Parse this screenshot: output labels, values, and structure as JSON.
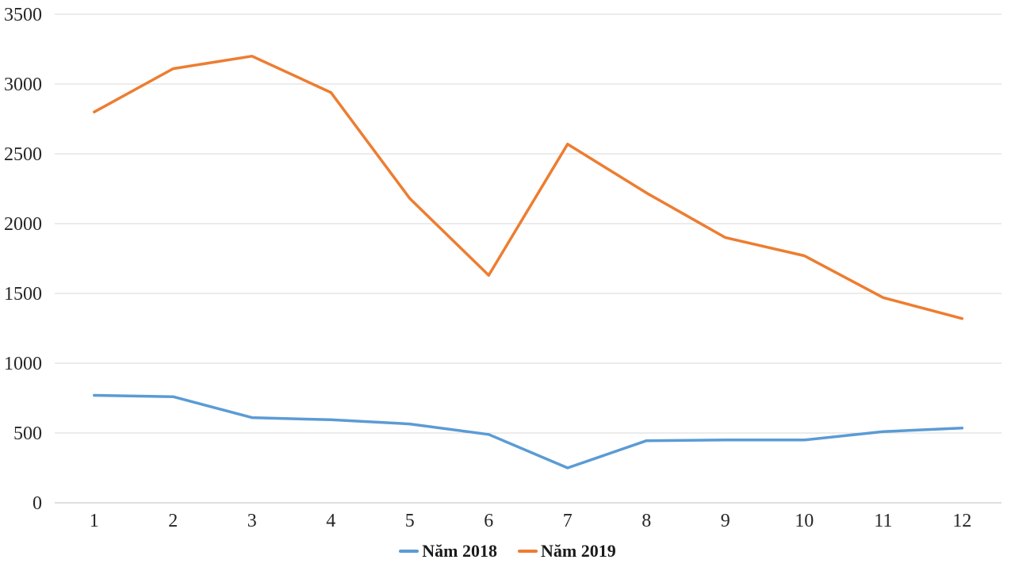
{
  "chart_data": {
    "type": "line",
    "title": "",
    "xlabel": "",
    "ylabel": "",
    "x_categories": [
      "1",
      "2",
      "3",
      "4",
      "5",
      "6",
      "7",
      "8",
      "9",
      "10",
      "11",
      "12"
    ],
    "series": [
      {
        "name": "Năm 2018",
        "color": "#5B9BD5",
        "values": [
          770,
          760,
          610,
          595,
          565,
          490,
          250,
          445,
          450,
          450,
          510,
          535
        ]
      },
      {
        "name": "Năm 2019",
        "color": "#ED7D31",
        "values": [
          2800,
          3110,
          3200,
          2940,
          2180,
          1630,
          2570,
          2220,
          1900,
          1770,
          1470,
          1320
        ]
      }
    ],
    "ylim": [
      0,
      3500
    ],
    "y_ticks": [
      "0",
      "500",
      "1000",
      "1500",
      "2000",
      "2500",
      "3000",
      "3500"
    ],
    "grid": "horizontal",
    "legend_position": "bottom-center",
    "gridline_color": "#D9D9D9",
    "axis_line_color": "#BFBFBF",
    "text_color": "#262626",
    "background": "#FFFFFF"
  }
}
